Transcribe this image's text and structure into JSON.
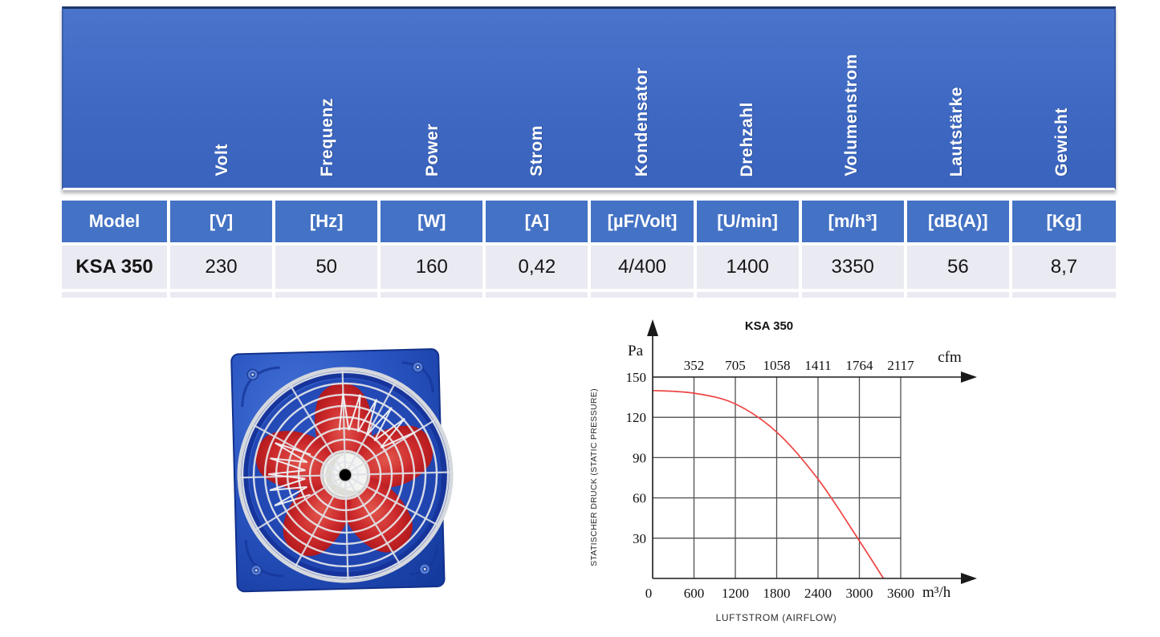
{
  "table": {
    "rotated_headers": [
      "Volt",
      "Frequenz",
      "Power",
      "Strom",
      "Kondensator",
      "Drehzahl",
      "Volumenstrom",
      "Lautstärke",
      "Gewicht"
    ],
    "units_row": [
      "Model",
      "[V]",
      "[Hz]",
      "[W]",
      "[A]",
      "[µF/Volt]",
      "[U/min]",
      "[m/h³]",
      "[dB(A)]",
      "[Kg]"
    ],
    "data_row": [
      "KSA 350",
      "230",
      "50",
      "160",
      "0,42",
      "4/400",
      "1400",
      "3350",
      "56",
      "8,7"
    ],
    "colors": {
      "header_gradient_top": "#4b75cc",
      "header_gradient_bottom": "#3a63be",
      "units_bg": "#4472c4",
      "data_bg": "#eaeaf2",
      "header_text": "#ffffff"
    }
  },
  "fan_image": {
    "description": "KSA 350 axial wall fan, blue square mounting plate, red blades, wire guard",
    "plate_color": "#2a55c2",
    "blade_color": "#c5222a",
    "hub_color": "#f4f4f2",
    "grille_color": "#e6e8ec"
  },
  "chart_data": {
    "type": "line",
    "title": "KSA 350",
    "ylabel": "Pa",
    "xlabel_top": "cfm",
    "xlabel_bottom": "m³/h",
    "y_caption": "STATISCHER DRUCK (STATIC PRESSURE)",
    "x_caption": "LUFTSTROM (AIRFLOW)",
    "xlim": [
      0,
      3600
    ],
    "ylim": [
      0,
      150
    ],
    "grid": true,
    "x_bottom_ticks": [
      0,
      600,
      1200,
      1800,
      2400,
      3000,
      3600
    ],
    "x_top_ticks": [
      352,
      705,
      1058,
      1411,
      1764,
      2117
    ],
    "y_ticks": [
      30,
      60,
      90,
      120,
      150
    ],
    "series": [
      {
        "name": "KSA 350 fan curve",
        "color": "#ee4545",
        "points": [
          [
            0,
            140
          ],
          [
            600,
            138
          ],
          [
            1200,
            130
          ],
          [
            1800,
            109
          ],
          [
            2400,
            74
          ],
          [
            3000,
            28
          ],
          [
            3350,
            0
          ]
        ]
      }
    ]
  }
}
